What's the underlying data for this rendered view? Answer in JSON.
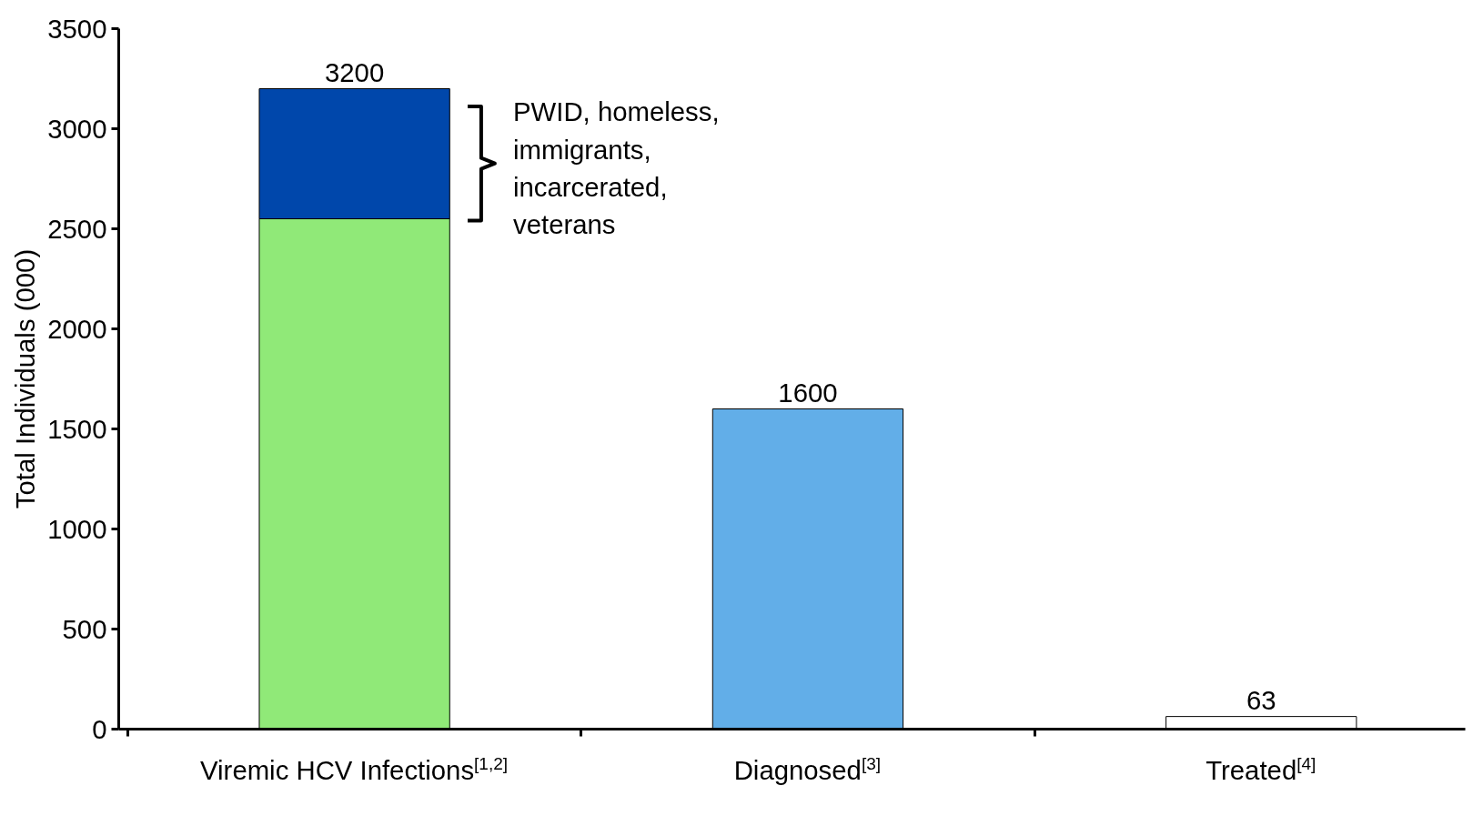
{
  "chart_data": {
    "type": "bar",
    "stacked": true,
    "ylabel": "Total Individuals (000)",
    "categories": [
      "Viremic HCV Infections$^{[1,2]}$",
      "Diagnosed$^{[3]}$",
      "Treated$^{[4]}$"
    ],
    "series": [
      {
        "colors": [
          "#90e978",
          "#62aee8",
          "#ffffff"
        ],
        "values": [
          2550,
          1600,
          63
        ]
      },
      {
        "color": "#0047ab",
        "values": [
          650,
          null,
          null
        ]
      }
    ],
    "totals": [
      "3200",
      "1600",
      "63"
    ],
    "annotations": [
      "PWID, homeless,\nimmigrants,\nincarcerated,\nveterans"
    ],
    "ylim": [
      0,
      3500
    ],
    "yticks": [
      0,
      500,
      1000,
      1500,
      2000,
      2500,
      3000,
      3500
    ],
    "grid": false
  }
}
